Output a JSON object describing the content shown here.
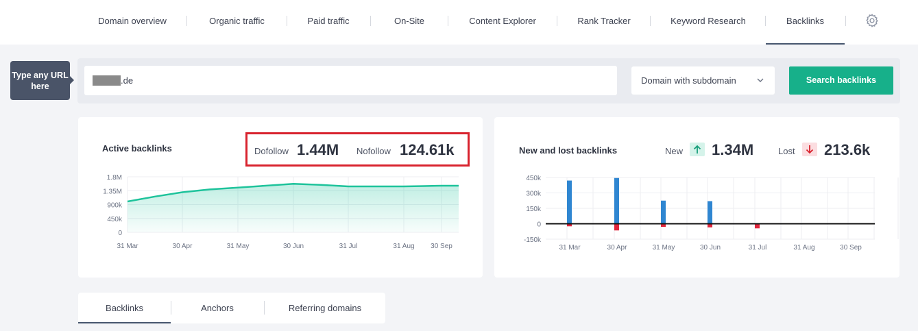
{
  "nav": {
    "items": [
      {
        "label": "Domain overview"
      },
      {
        "label": "Organic traffic"
      },
      {
        "label": "Paid traffic"
      },
      {
        "label": "On-Site"
      },
      {
        "label": "Content Explorer"
      },
      {
        "label": "Rank Tracker"
      },
      {
        "label": "Keyword Research"
      },
      {
        "label": "Backlinks"
      }
    ],
    "active": "Backlinks",
    "settings_icon": "gear-icon"
  },
  "search": {
    "tooltip": "Type any URL here",
    "url_suffix": ".de",
    "scope_selected": "Domain with subdomain",
    "button_label": "Search backlinks"
  },
  "active_backlinks": {
    "title": "Active backlinks",
    "dofollow_label": "Dofollow",
    "dofollow_value": "1.44M",
    "nofollow_label": "Nofollow",
    "nofollow_value": "124.61k"
  },
  "new_lost": {
    "title": "New and lost backlinks",
    "new_label": "New",
    "new_value": "1.34M",
    "lost_label": "Lost",
    "lost_value": "213.6k",
    "colors": {
      "new": "#2f86d1",
      "lost": "#e0253c",
      "new_badge": "#d5f3ea",
      "lost_badge": "#fbdde0"
    }
  },
  "tabs": [
    {
      "label": "Backlinks"
    },
    {
      "label": "Anchors"
    },
    {
      "label": "Referring domains"
    }
  ],
  "chart_data": [
    {
      "type": "area",
      "yticks": [
        "1.8M",
        "1.35M",
        "900k",
        "450k",
        "0"
      ],
      "ylim": [
        0,
        1800000
      ],
      "xticks": [
        "31 Mar",
        "30 Apr",
        "31 May",
        "30 Jun",
        "31 Jul",
        "31 Aug",
        "30 Sep"
      ],
      "grid": true,
      "color": "#1ec39b",
      "x": [
        "31 Mar",
        "15 Apr",
        "30 Apr",
        "15 May",
        "31 May",
        "15 Jun",
        "30 Jun",
        "15 Jul",
        "31 Jul",
        "15 Aug",
        "31 Aug",
        "15 Sep",
        "30 Sep",
        "10 Oct"
      ],
      "values": [
        1000000,
        1160000,
        1300000,
        1390000,
        1450000,
        1510000,
        1570000,
        1540000,
        1490000,
        1490000,
        1490000,
        1500000,
        1510000,
        1510000
      ]
    },
    {
      "type": "bar",
      "yticks": [
        "450k",
        "300k",
        "150k",
        "0",
        "-150k"
      ],
      "ylim": [
        -150000,
        450000
      ],
      "xticks": [
        "31 Mar",
        "30 Apr",
        "31 May",
        "30 Jun",
        "31 Jul",
        "31 Aug",
        "30 Sep"
      ],
      "grid": true,
      "series": [
        {
          "name": "New",
          "values": [
            420000,
            445000,
            225000,
            220000,
            3000,
            4000,
            6000
          ]
        },
        {
          "name": "Lost",
          "values": [
            -25000,
            -65000,
            -30000,
            -35000,
            -45000,
            -3000,
            -4000
          ]
        }
      ]
    }
  ]
}
